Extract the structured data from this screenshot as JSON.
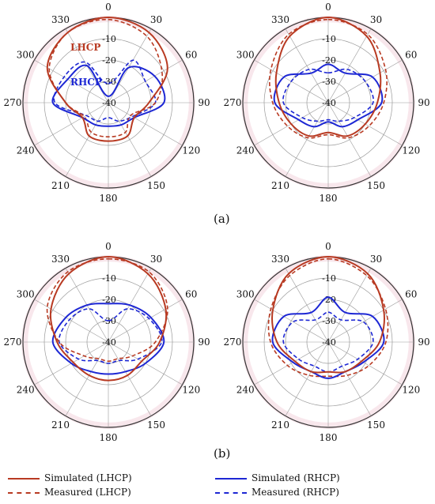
{
  "colors": {
    "lhcp": "#b83a22",
    "rhcp": "#1d27d4",
    "grid": "#9a9a9a",
    "shade": "#f3d4dc"
  },
  "captions": [
    "(a)",
    "(b)"
  ],
  "legend": [
    {
      "label": "Simulated (LHCP)",
      "color": "#b83a22",
      "style": "solid"
    },
    {
      "label": "Simulated (RHCP)",
      "color": "#1d27d4",
      "style": "solid"
    },
    {
      "label": "Measured (LHCP)",
      "color": "#b83a22",
      "style": "dashed"
    },
    {
      "label": "Measured (RHCP)",
      "color": "#1d27d4",
      "style": "dashed"
    }
  ],
  "chart_data": [
    {
      "type": "polar",
      "radial_ticks": [
        "-10",
        "-20",
        "-30",
        "-40"
      ],
      "rlim": [
        -40,
        0
      ],
      "angle_ticks": [
        "0",
        "30",
        "60",
        "90",
        "120",
        "150",
        "180",
        "210",
        "240",
        "270",
        "300",
        "330"
      ],
      "annotations": [
        "LHCP",
        "RHCP"
      ],
      "angles": [
        0,
        30,
        60,
        90,
        120,
        150,
        180,
        210,
        240,
        270,
        300,
        330
      ],
      "series": [
        {
          "name": "Simulated (LHCP)",
          "style": "solid",
          "values": [
            0,
            -2,
            -8,
            -21,
            -26,
            -22,
            -22,
            -22,
            -26,
            -20,
            -7,
            -2
          ]
        },
        {
          "name": "Measured (LHCP)",
          "style": "dashed",
          "values": [
            -1,
            -4,
            -11,
            -18,
            -28,
            -24,
            -24,
            -24,
            -27,
            -20,
            -8,
            -2
          ]
        },
        {
          "name": "Simulated (RHCP)",
          "style": "solid",
          "values": [
            -37,
            -21,
            -15,
            -14,
            -26,
            -28,
            -29,
            -28,
            -26,
            -14,
            -18,
            -20
          ]
        },
        {
          "name": "Measured (RHCP)",
          "style": "dashed",
          "values": [
            -31,
            -17,
            -20,
            -18,
            -27,
            -30,
            -33,
            -30,
            -28,
            -15,
            -16,
            -18
          ]
        }
      ]
    },
    {
      "type": "polar",
      "radial_ticks": [
        "-10",
        "-20",
        "-30",
        "-40"
      ],
      "rlim": [
        -40,
        0
      ],
      "angle_ticks": [
        "0",
        "30",
        "60",
        "90",
        "120",
        "150",
        "180",
        "210",
        "240",
        "270",
        "300",
        "330"
      ],
      "angles": [
        0,
        30,
        60,
        90,
        120,
        150,
        180,
        210,
        240,
        270,
        300,
        330
      ],
      "series": [
        {
          "name": "Simulated (LHCP)",
          "style": "solid",
          "values": [
            0,
            -4,
            -12,
            -17,
            -20,
            -22,
            -26,
            -22,
            -20,
            -17,
            -12,
            -4
          ]
        },
        {
          "name": "Measured (LHCP)",
          "style": "dashed",
          "values": [
            -1,
            -3,
            -9,
            -14,
            -18,
            -21,
            -25,
            -21,
            -18,
            -14,
            -9,
            -3
          ]
        },
        {
          "name": "Simulated (RHCP)",
          "style": "solid",
          "values": [
            -22,
            -24,
            -16,
            -15,
            -24,
            -27,
            -31,
            -27,
            -24,
            -15,
            -16,
            -24
          ]
        },
        {
          "name": "Measured (RHCP)",
          "style": "dashed",
          "values": [
            -26,
            -22,
            -20,
            -19,
            -26,
            -30,
            -32,
            -30,
            -26,
            -19,
            -20,
            -22
          ]
        }
      ]
    },
    {
      "type": "polar",
      "radial_ticks": [
        "-10",
        "-20",
        "-30",
        "-40"
      ],
      "rlim": [
        -40,
        0
      ],
      "angle_ticks": [
        "0",
        "30",
        "60",
        "90",
        "120",
        "150",
        "180",
        "210",
        "240",
        "270",
        "300",
        "330"
      ],
      "angles": [
        0,
        30,
        60,
        90,
        120,
        150,
        180,
        210,
        240,
        270,
        300,
        330
      ],
      "series": [
        {
          "name": "Simulated (LHCP)",
          "style": "solid",
          "values": [
            0,
            -3,
            -9,
            -16,
            -22,
            -22,
            -22,
            -22,
            -21,
            -16,
            -9,
            -3
          ]
        },
        {
          "name": "Measured (LHCP)",
          "style": "dashed",
          "values": [
            -1,
            -2,
            -8,
            -18,
            -27,
            -31,
            -31,
            -31,
            -27,
            -17,
            -7,
            -2
          ]
        },
        {
          "name": "Simulated (RHCP)",
          "style": "solid",
          "values": [
            -22,
            -20,
            -17,
            -14,
            -20,
            -24,
            -25,
            -24,
            -20,
            -14,
            -17,
            -20
          ]
        },
        {
          "name": "Measured (RHCP)",
          "style": "dashed",
          "values": [
            -30,
            -22,
            -18,
            -15,
            -24,
            -30,
            -30,
            -30,
            -24,
            -17,
            -19,
            -22
          ]
        }
      ]
    },
    {
      "type": "polar",
      "radial_ticks": [
        "-10",
        "-20",
        "-30",
        "-40"
      ],
      "rlim": [
        -40,
        0
      ],
      "angle_ticks": [
        "0",
        "30",
        "60",
        "90",
        "120",
        "150",
        "180",
        "210",
        "240",
        "270",
        "300",
        "330"
      ],
      "angles": [
        0,
        30,
        60,
        90,
        120,
        150,
        180,
        210,
        240,
        270,
        300,
        330
      ],
      "series": [
        {
          "name": "Simulated (LHCP)",
          "style": "solid",
          "values": [
            0,
            -3,
            -10,
            -16,
            -22,
            -24,
            -26,
            -24,
            -22,
            -16,
            -10,
            -3
          ]
        },
        {
          "name": "Measured (LHCP)",
          "style": "dashed",
          "values": [
            -1,
            -4,
            -9,
            -13,
            -18,
            -22,
            -24,
            -22,
            -18,
            -13,
            -9,
            -4
          ]
        },
        {
          "name": "Simulated (RHCP)",
          "style": "solid",
          "values": [
            -19,
            -24,
            -16,
            -14,
            -21,
            -24,
            -23,
            -24,
            -21,
            -14,
            -16,
            -24
          ]
        },
        {
          "name": "Measured (RHCP)",
          "style": "dashed",
          "values": [
            -26,
            -28,
            -21,
            -19,
            -24,
            -27,
            -26,
            -27,
            -24,
            -19,
            -21,
            -28
          ]
        }
      ]
    }
  ]
}
